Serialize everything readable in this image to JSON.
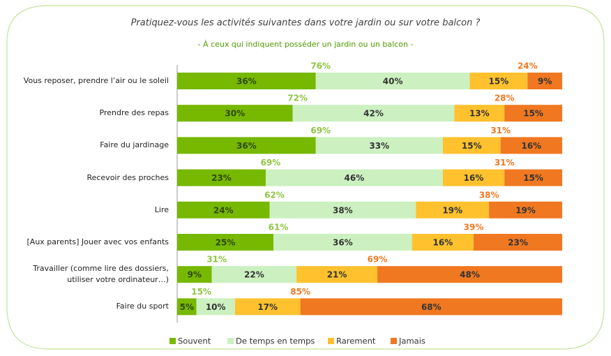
{
  "chart_data": {
    "type": "stacked_barh",
    "title": "Pratiquez-vous les activités suivantes dans votre jardin ou sur votre balcon ?",
    "subtitle": "- À ceux qui indiquent posséder un jardin ou un balcon -",
    "categories": [
      "Vous reposer, prendre l’air ou le soleil",
      "Prendre des repas",
      "Faire du jardinage",
      "Recevoir des proches",
      "Lire",
      "[Aux parents] Jouer avec vos enfants",
      "Travailler (comme lire des dossiers, utiliser votre ordinateur…)",
      "Faire du sport"
    ],
    "xlim": [
      0,
      100
    ],
    "series": [
      {
        "name": "Souvent",
        "color": "#77b800",
        "text_color": "#2d4a00",
        "values": [
          36,
          30,
          36,
          23,
          24,
          25,
          9,
          5
        ],
        "value_labels": [
          "36%",
          "30%",
          "36%",
          "23%",
          "24%",
          "25%",
          "9%",
          "5%"
        ]
      },
      {
        "name": "De temps en temps",
        "color": "#ccf0c0",
        "text_color": "#333333",
        "values": [
          40,
          42,
          33,
          46,
          38,
          36,
          22,
          10
        ],
        "value_labels": [
          "40%",
          "42%",
          "33%",
          "46%",
          "38%",
          "36%",
          "22%",
          "10%"
        ]
      },
      {
        "name": "Rarement",
        "color": "#ffc12e",
        "text_color": "#333333",
        "values": [
          15,
          13,
          15,
          16,
          19,
          16,
          21,
          17
        ],
        "value_labels": [
          "15%",
          "13%",
          "15%",
          "16%",
          "19%",
          "16%",
          "21%",
          "17%"
        ]
      },
      {
        "name": "Jamais",
        "color": "#f07820",
        "text_color": "#333333",
        "values": [
          9,
          15,
          16,
          15,
          19,
          23,
          48,
          68
        ],
        "value_labels": [
          "9%",
          "15%",
          "16%",
          "15%",
          "19%",
          "23%",
          "48%",
          "68%"
        ]
      }
    ],
    "net_positive": {
      "color": "#8cc63f",
      "values": [
        76,
        72,
        69,
        69,
        62,
        61,
        31,
        15
      ],
      "value_labels": [
        "76%",
        "72%",
        "69%",
        "69%",
        "62%",
        "61%",
        "31%",
        "15%"
      ]
    },
    "net_negative": {
      "color": "#f07820",
      "values": [
        24,
        28,
        31,
        31,
        38,
        39,
        69,
        85
      ],
      "value_labels": [
        "24%",
        "28%",
        "31%",
        "31%",
        "38%",
        "39%",
        "69%",
        "85%"
      ]
    }
  }
}
